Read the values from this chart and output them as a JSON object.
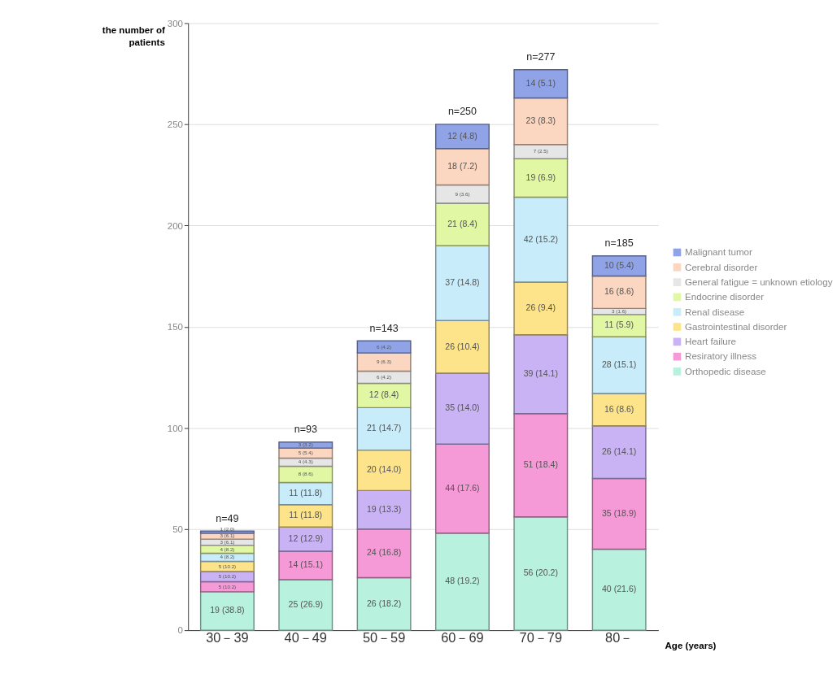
{
  "chart_data": {
    "type": "bar",
    "stacked": true,
    "ylabel": "the number of patients",
    "xlabel": "Age (years)",
    "categories": [
      "30－39",
      "40－49",
      "50－59",
      "60－69",
      "70－79",
      "80－"
    ],
    "ylim": [
      0,
      300
    ],
    "yticks": [
      0,
      50,
      100,
      150,
      200,
      250,
      300
    ],
    "grid": "y",
    "legend": "right",
    "series": [
      {
        "name": "Orthopedic disease",
        "color": "#b8f2de",
        "values": [
          19,
          25,
          26,
          48,
          56,
          40
        ],
        "value_labels": [
          "19 (38.8)",
          "25 (26.9)",
          "26 (18.2)",
          "48 (19.2)",
          "56 (20.2)",
          "40 (21.6)"
        ]
      },
      {
        "name": "Resiratory illness",
        "color": "#f59ad6",
        "values": [
          5,
          14,
          24,
          44,
          51,
          35
        ],
        "value_labels": [
          "5 (10.2)",
          "14 (15.1)",
          "24 (16.8)",
          "44 (17.6)",
          "51 (18.4)",
          "35 (18.9)"
        ]
      },
      {
        "name": "Heart failure",
        "color": "#c9b3f5",
        "values": [
          5,
          12,
          19,
          35,
          39,
          26
        ],
        "value_labels": [
          "5 (10.2)",
          "12 (12.9)",
          "19 (13.3)",
          "35 (14.0)",
          "39 (14.1)",
          "26 (14.1)"
        ]
      },
      {
        "name": "Gastrointestinal disorder",
        "color": "#fde38a",
        "values": [
          5,
          11,
          20,
          26,
          26,
          16
        ],
        "value_labels": [
          "5 (10.2)",
          "11 (11.8)",
          "20 (14.0)",
          "26 (10.4)",
          "26 (9.4)",
          "16 (8.6)"
        ]
      },
      {
        "name": "Renal disease",
        "color": "#c8ecfa",
        "values": [
          4,
          11,
          21,
          37,
          42,
          28
        ],
        "value_labels": [
          "4 (8.2)",
          "11 (11.8)",
          "21 (14.7)",
          "37 (14.8)",
          "42 (15.2)",
          "28 (15.1)"
        ]
      },
      {
        "name": "Endocrine disorder",
        "color": "#e2f7a3",
        "values": [
          4,
          8,
          12,
          21,
          19,
          11
        ],
        "value_labels": [
          "4 (8.2)",
          "8 (8.6)",
          "12 (8.4)",
          "21 (8.4)",
          "19 (6.9)",
          "11 (5.9)"
        ]
      },
      {
        "name": "General fatigue = unknown etiology",
        "color": "#e6e6e6",
        "values": [
          3,
          4,
          6,
          9,
          7,
          3
        ],
        "value_labels": [
          "3 (6.1)",
          "4 (4.3)",
          "6 (4.2)",
          "9 (3.6)",
          "7 (2.5)",
          "3 (1.6)"
        ]
      },
      {
        "name": "Cerebral disorder",
        "color": "#fbd6c0",
        "values": [
          3,
          5,
          9,
          18,
          23,
          16
        ],
        "value_labels": [
          "3 (6.1)",
          "5 (5.4)",
          "9 (6.3)",
          "18 (7.2)",
          "23 (8.3)",
          "16 (8.6)"
        ]
      },
      {
        "name": "Malignant tumor",
        "color": "#8fa3e6",
        "values": [
          1,
          3,
          6,
          12,
          14,
          10
        ],
        "value_labels": [
          "1 (2.0)",
          "3 (3.2)",
          "6 (4.2)",
          "12 (4.8)",
          "14 (5.1)",
          "10 (5.4)"
        ]
      }
    ],
    "totals": [
      "n=49",
      "n=93",
      "n=143",
      "n=250",
      "n=277",
      "n=185"
    ]
  }
}
